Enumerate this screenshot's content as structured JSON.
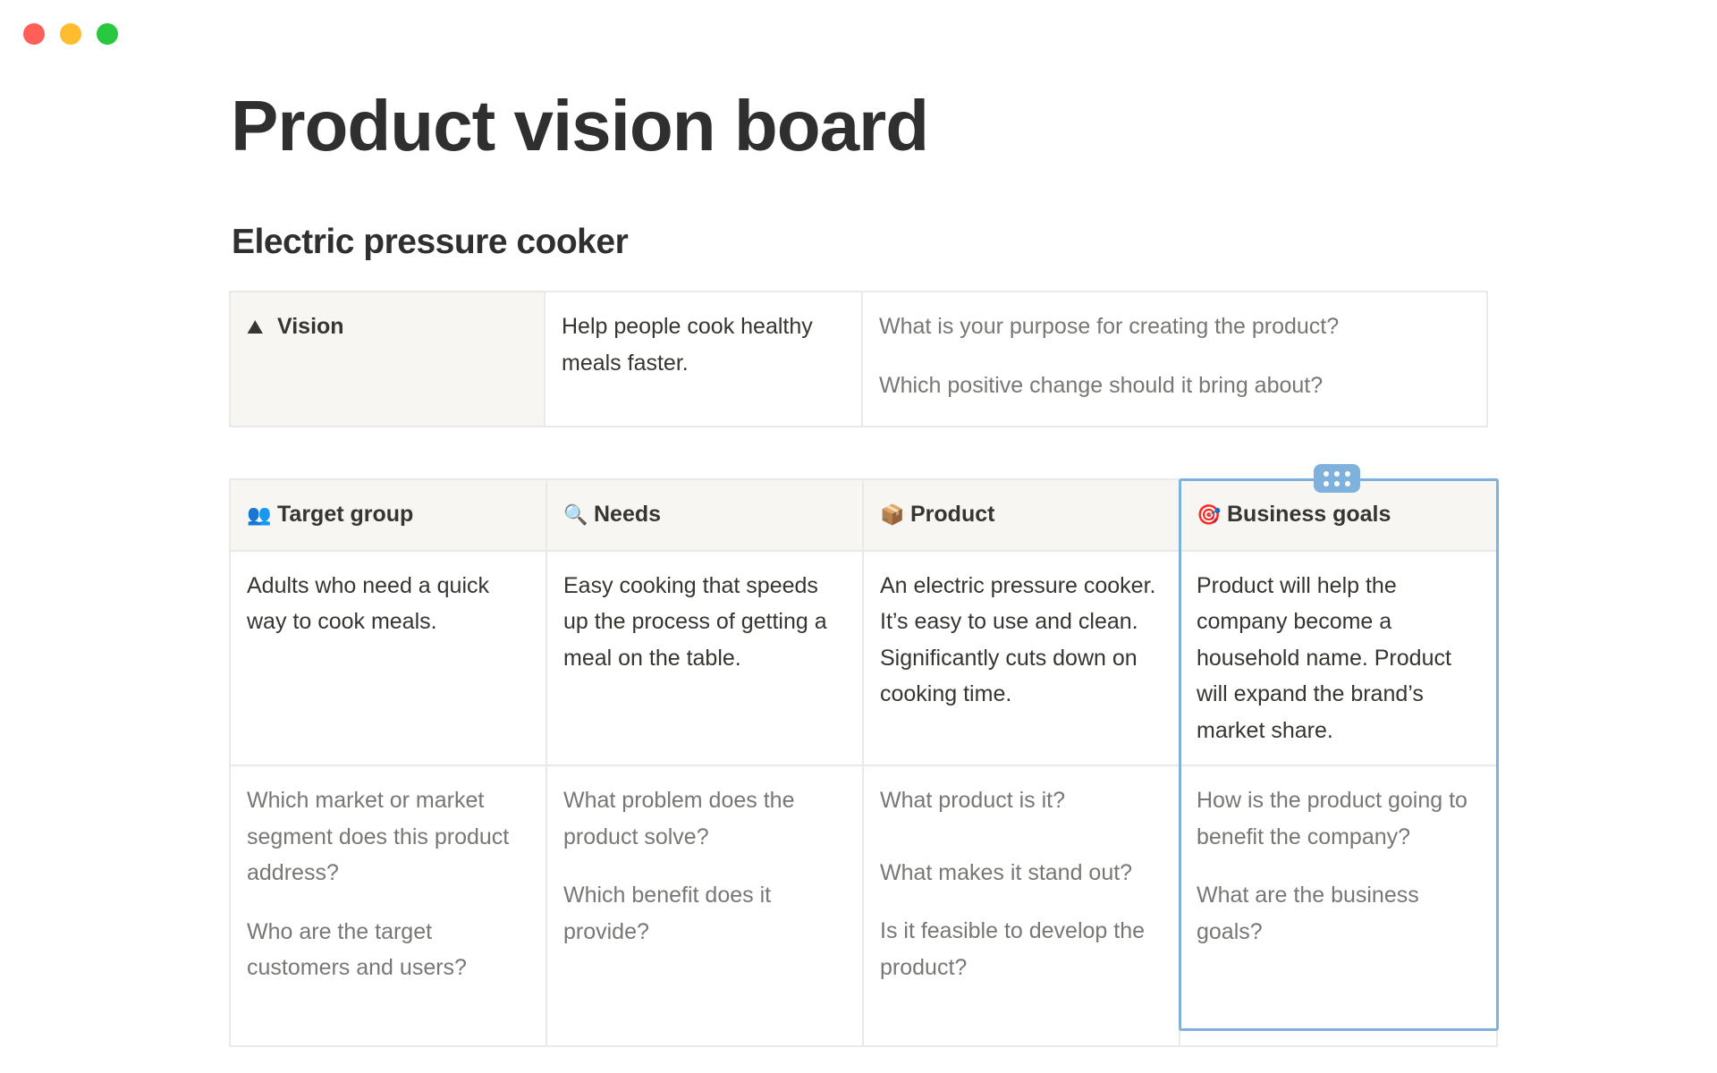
{
  "window": {
    "controls": {
      "close_color": "#ff5f57",
      "minimize_color": "#febc2e",
      "maximize_color": "#28c840"
    }
  },
  "page": {
    "title": "Product vision board",
    "subtitle": "Electric pressure cooker"
  },
  "vision": {
    "icon": "mountain-icon",
    "label": "Vision",
    "value": "Help people cook healthy meals faster.",
    "questions": [
      "What is your purpose for creating the product?",
      "Which positive change should it bring about?"
    ]
  },
  "board": {
    "columns": [
      {
        "icon": "people-icon",
        "label": "Target group",
        "value": "Adults who need a quick way to cook meals.",
        "questions": [
          "Which market or market segment does this product address?",
          "Who are the target customers and users?"
        ]
      },
      {
        "icon": "magnifier-icon",
        "label": "Needs",
        "value": "Easy cooking that speeds up the process of getting a meal on the table.",
        "questions": [
          "What problem does the product solve?",
          "Which benefit does it provide?"
        ]
      },
      {
        "icon": "package-icon",
        "label": "Product",
        "value": "An electric pressure cooker. It’s easy to use and clean. Significantly cuts down on cooking time.",
        "questions": [
          "What product is it?",
          "What makes it stand out?",
          "Is it feasible to develop the product?"
        ]
      },
      {
        "icon": "target-icon",
        "label": "Business goals",
        "value": "Product will help the company become a household name. Product will expand the brand’s market share.",
        "questions": [
          "How is the product going to benefit the company?",
          "What are the business goals?"
        ]
      }
    ]
  },
  "accent": "#7eb2dc"
}
